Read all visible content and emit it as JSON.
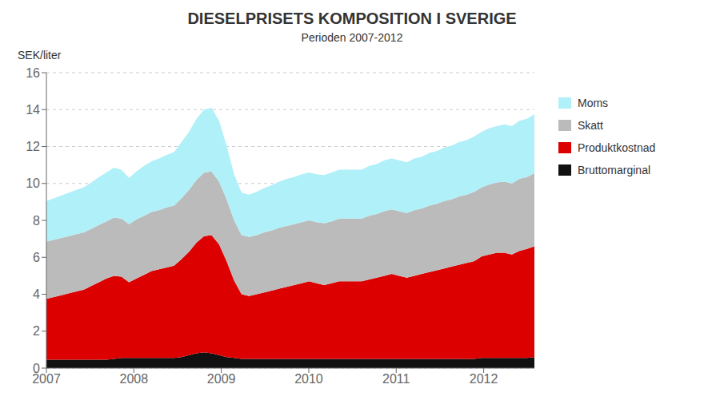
{
  "chart_data": {
    "type": "area",
    "stacked": true,
    "title": "DIESELPRISETS  KOMPOSITION I SVERIGE",
    "subtitle": "Perioden 2007-2012",
    "ylabel": "SEK/liter",
    "xlim": [
      2007.0,
      2012.58
    ],
    "xticks": [
      2007,
      2008,
      2009,
      2010,
      2011,
      2012
    ],
    "ylim": [
      0,
      16
    ],
    "yticks": [
      0,
      2,
      4,
      6,
      8,
      10,
      12,
      14,
      16
    ],
    "grid": true,
    "legend": "right",
    "x": [
      2007.0,
      2007.0858,
      2007.1717,
      2007.2575,
      2007.3434,
      2007.4292,
      2007.5151,
      2007.6009,
      2007.6868,
      2007.7726,
      2007.8585,
      2007.9443,
      2008.0302,
      2008.116,
      2008.2018,
      2008.2877,
      2008.3735,
      2008.4594,
      2008.5452,
      2008.6311,
      2008.7169,
      2008.8028,
      2008.8886,
      2008.9745,
      2009.0603,
      2009.1462,
      2009.232,
      2009.3178,
      2009.4037,
      2009.4895,
      2009.5754,
      2009.6612,
      2009.7471,
      2009.8329,
      2009.9188,
      2010.0046,
      2010.0905,
      2010.1763,
      2010.2622,
      2010.348,
      2010.4338,
      2010.5197,
      2010.6055,
      2010.6914,
      2010.7772,
      2010.8631,
      2010.9489,
      2011.0348,
      2011.1206,
      2011.2065,
      2011.2923,
      2011.3782,
      2011.464,
      2011.5498,
      2011.6357,
      2011.7215,
      2011.8074,
      2011.8932,
      2011.9791,
      2012.0649,
      2012.1508,
      2012.2366,
      2012.3225,
      2012.4083,
      2012.4942,
      2012.58
    ],
    "series": [
      {
        "name": "Bruttomarginal",
        "color": "#111111",
        "values": [
          0.45,
          0.45,
          0.45,
          0.45,
          0.45,
          0.45,
          0.45,
          0.45,
          0.45,
          0.5,
          0.55,
          0.55,
          0.55,
          0.55,
          0.55,
          0.55,
          0.55,
          0.55,
          0.6,
          0.7,
          0.8,
          0.85,
          0.8,
          0.7,
          0.6,
          0.55,
          0.5,
          0.5,
          0.5,
          0.5,
          0.5,
          0.5,
          0.5,
          0.5,
          0.5,
          0.5,
          0.5,
          0.5,
          0.5,
          0.5,
          0.5,
          0.5,
          0.5,
          0.5,
          0.5,
          0.5,
          0.5,
          0.5,
          0.5,
          0.5,
          0.5,
          0.5,
          0.5,
          0.5,
          0.5,
          0.5,
          0.5,
          0.5,
          0.55,
          0.55,
          0.55,
          0.55,
          0.55,
          0.55,
          0.55,
          0.6
        ]
      },
      {
        "name": "Produktkostnad",
        "color": "#dd0000",
        "values": [
          3.3,
          3.4,
          3.5,
          3.6,
          3.7,
          3.8,
          4.0,
          4.2,
          4.4,
          4.5,
          4.4,
          4.1,
          4.3,
          4.5,
          4.7,
          4.8,
          4.9,
          5.0,
          5.3,
          5.6,
          6.0,
          6.3,
          6.4,
          6.0,
          5.2,
          4.2,
          3.5,
          3.4,
          3.5,
          3.6,
          3.7,
          3.8,
          3.9,
          4.0,
          4.1,
          4.2,
          4.1,
          4.0,
          4.1,
          4.2,
          4.2,
          4.2,
          4.2,
          4.3,
          4.4,
          4.5,
          4.6,
          4.5,
          4.4,
          4.5,
          4.6,
          4.7,
          4.8,
          4.9,
          5.0,
          5.1,
          5.2,
          5.3,
          5.5,
          5.6,
          5.7,
          5.7,
          5.6,
          5.8,
          5.9,
          6.0
        ]
      },
      {
        "name": "Skatt",
        "color": "#bbbbbb",
        "values": [
          3.1,
          3.1,
          3.1,
          3.1,
          3.1,
          3.1,
          3.1,
          3.1,
          3.1,
          3.15,
          3.15,
          3.15,
          3.2,
          3.2,
          3.2,
          3.2,
          3.25,
          3.25,
          3.3,
          3.35,
          3.4,
          3.45,
          3.45,
          3.4,
          3.35,
          3.25,
          3.2,
          3.2,
          3.2,
          3.25,
          3.25,
          3.3,
          3.3,
          3.3,
          3.3,
          3.3,
          3.3,
          3.35,
          3.35,
          3.4,
          3.4,
          3.4,
          3.4,
          3.45,
          3.45,
          3.5,
          3.5,
          3.5,
          3.5,
          3.55,
          3.55,
          3.6,
          3.6,
          3.65,
          3.65,
          3.7,
          3.7,
          3.75,
          3.75,
          3.8,
          3.8,
          3.85,
          3.85,
          3.9,
          3.9,
          3.95
        ]
      },
      {
        "name": "Moms",
        "color": "#b0f0f8",
        "values": [
          2.2,
          2.25,
          2.3,
          2.35,
          2.4,
          2.45,
          2.5,
          2.6,
          2.65,
          2.7,
          2.65,
          2.5,
          2.6,
          2.7,
          2.75,
          2.8,
          2.85,
          2.9,
          3.05,
          3.15,
          3.3,
          3.4,
          3.45,
          3.3,
          2.9,
          2.5,
          2.3,
          2.3,
          2.35,
          2.4,
          2.45,
          2.5,
          2.55,
          2.55,
          2.6,
          2.6,
          2.6,
          2.6,
          2.65,
          2.65,
          2.65,
          2.65,
          2.65,
          2.7,
          2.7,
          2.75,
          2.75,
          2.75,
          2.75,
          2.8,
          2.8,
          2.85,
          2.85,
          2.9,
          2.9,
          2.95,
          2.95,
          3.0,
          3.0,
          3.05,
          3.05,
          3.1,
          3.1,
          3.15,
          3.15,
          3.2
        ]
      }
    ]
  }
}
